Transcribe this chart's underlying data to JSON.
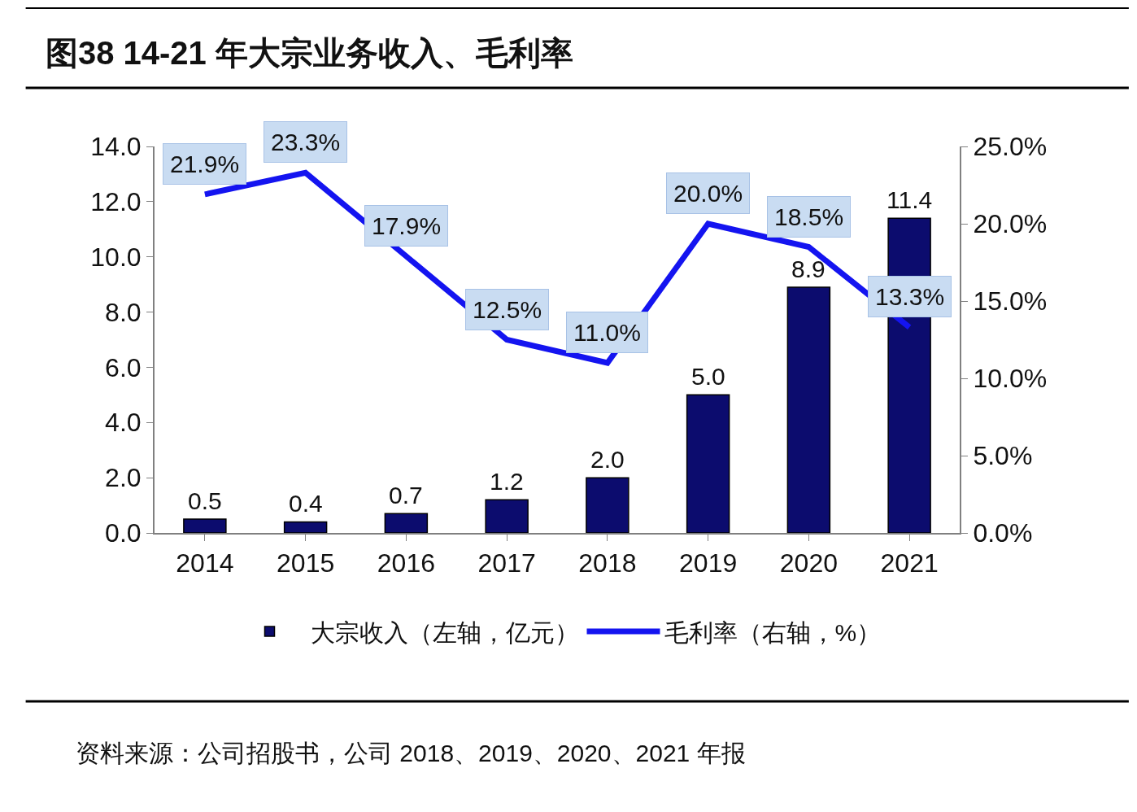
{
  "chart_data": {
    "type": "bar",
    "title": "图38 14-21 年大宗业务收入、毛利率",
    "categories": [
      "2014",
      "2015",
      "2016",
      "2017",
      "2018",
      "2019",
      "2020",
      "2021"
    ],
    "series": [
      {
        "name": "大宗收入（左轴，亿元）",
        "color": "#0c0c6e",
        "values": [
          0.5,
          0.4,
          0.7,
          1.2,
          2.0,
          5.0,
          8.9,
          11.4
        ],
        "value_labels": [
          "0.5",
          "0.4",
          "0.7",
          "1.2",
          "2.0",
          "5.0",
          "8.9",
          "11.4"
        ]
      },
      {
        "name": "毛利率（右轴，%）",
        "type": "line",
        "axis": "y2",
        "color": "#1414f0",
        "values": [
          21.9,
          23.3,
          17.9,
          12.5,
          11.0,
          20.0,
          18.5,
          13.3
        ],
        "value_labels": [
          "21.9%",
          "23.3%",
          "17.9%",
          "12.5%",
          "11.0%",
          "20.0%",
          "18.5%",
          "13.3%"
        ]
      }
    ],
    "ylim": [
      0,
      14
    ],
    "yticks": [
      {
        "value": 0,
        "label": "0.0"
      },
      {
        "value": 2,
        "label": "2.0"
      },
      {
        "value": 4,
        "label": "4.0"
      },
      {
        "value": 6,
        "label": "6.0"
      },
      {
        "value": 8,
        "label": "8.0"
      },
      {
        "value": 10,
        "label": "10.0"
      },
      {
        "value": 12,
        "label": "12.0"
      },
      {
        "value": 14,
        "label": "14.0"
      }
    ],
    "y2lim": [
      0,
      25
    ],
    "y2ticks": [
      {
        "value": 0,
        "label": "0.0%"
      },
      {
        "value": 5,
        "label": "5.0%"
      },
      {
        "value": 10,
        "label": "10.0%"
      },
      {
        "value": 15,
        "label": "15.0%"
      },
      {
        "value": 20,
        "label": "20.0%"
      },
      {
        "value": 25,
        "label": "25.0%"
      }
    ],
    "legend": "bottom",
    "marker": "none",
    "line_style": "solid",
    "annotations": [
      "资料来源：公司招股书，公司 2018、2019、2020、2021 年报"
    ]
  }
}
